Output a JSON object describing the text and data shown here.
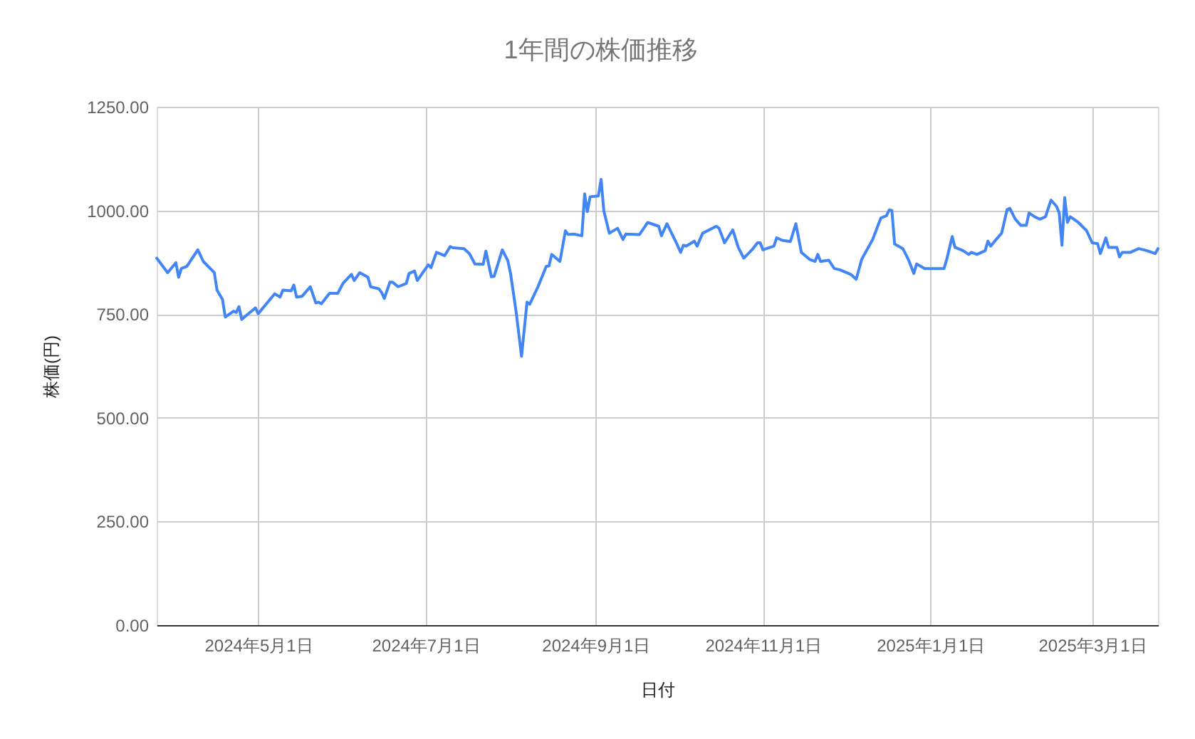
{
  "chart_data": {
    "type": "line",
    "title": "1年間の株価推移",
    "xlabel": "日付",
    "ylabel": "株価(円)",
    "x": [
      "2024-03-25",
      "2024-03-29",
      "2024-04-01",
      "2024-04-02",
      "2024-04-03",
      "2024-04-05",
      "2024-04-09",
      "2024-04-11",
      "2024-04-15",
      "2024-04-16",
      "2024-04-18",
      "2024-04-19",
      "2024-04-22",
      "2024-04-23",
      "2024-04-24",
      "2024-04-25",
      "2024-04-26",
      "2024-04-30",
      "2024-05-01",
      "2024-05-07",
      "2024-05-09",
      "2024-05-10",
      "2024-05-13",
      "2024-05-14",
      "2024-05-15",
      "2024-05-17",
      "2024-05-20",
      "2024-05-22",
      "2024-05-23",
      "2024-05-24",
      "2024-05-27",
      "2024-05-30",
      "2024-06-01",
      "2024-06-04",
      "2024-06-05",
      "2024-06-07",
      "2024-06-10",
      "2024-06-11",
      "2024-06-14",
      "2024-06-15",
      "2024-06-16",
      "2024-06-18",
      "2024-06-19",
      "2024-06-21",
      "2024-06-24",
      "2024-06-25",
      "2024-06-27",
      "2024-06-28",
      "2024-07-02",
      "2024-07-03",
      "2024-07-05",
      "2024-07-08",
      "2024-07-10",
      "2024-07-11",
      "2024-07-15",
      "2024-07-17",
      "2024-07-19",
      "2024-07-22",
      "2024-07-23",
      "2024-07-25",
      "2024-07-26",
      "2024-07-29",
      "2024-07-31",
      "2024-08-01",
      "2024-08-03",
      "2024-08-05",
      "2024-08-07",
      "2024-08-08",
      "2024-08-11",
      "2024-08-14",
      "2024-08-15",
      "2024-08-16",
      "2024-08-19",
      "2024-08-21",
      "2024-08-22",
      "2024-08-24",
      "2024-08-27",
      "2024-08-28",
      "2024-08-29",
      "2024-08-30",
      "2024-09-02",
      "2024-09-03",
      "2024-09-04",
      "2024-09-06",
      "2024-09-09",
      "2024-09-11",
      "2024-09-12",
      "2024-09-17",
      "2024-09-20",
      "2024-09-24",
      "2024-09-25",
      "2024-09-27",
      "2024-09-30",
      "2024-10-02",
      "2024-10-03",
      "2024-10-04",
      "2024-10-07",
      "2024-10-08",
      "2024-10-10",
      "2024-10-15",
      "2024-10-16",
      "2024-10-18",
      "2024-10-21",
      "2024-10-23",
      "2024-10-25",
      "2024-10-28",
      "2024-10-30",
      "2024-10-31",
      "2024-11-01",
      "2024-11-05",
      "2024-11-06",
      "2024-11-08",
      "2024-11-11",
      "2024-11-13",
      "2024-11-15",
      "2024-11-18",
      "2024-11-20",
      "2024-11-21",
      "2024-11-22",
      "2024-11-25",
      "2024-11-27",
      "2024-11-29",
      "2024-12-03",
      "2024-12-05",
      "2024-12-07",
      "2024-12-11",
      "2024-12-14",
      "2024-12-16",
      "2024-12-17",
      "2024-12-18",
      "2024-12-19",
      "2024-12-22",
      "2024-12-24",
      "2024-12-26",
      "2024-12-27",
      "2024-12-30",
      "2025-01-06",
      "2025-01-07",
      "2025-01-09",
      "2025-01-10",
      "2025-01-13",
      "2025-01-15",
      "2025-01-16",
      "2025-01-18",
      "2025-01-21",
      "2025-01-22",
      "2025-01-23",
      "2025-01-25",
      "2025-01-27",
      "2025-01-29",
      "2025-01-30",
      "2025-02-01",
      "2025-02-03",
      "2025-02-05",
      "2025-02-06",
      "2025-02-08",
      "2025-02-10",
      "2025-02-12",
      "2025-02-14",
      "2025-02-16",
      "2025-02-17",
      "2025-02-18",
      "2025-02-19",
      "2025-02-20",
      "2025-02-21",
      "2025-02-24",
      "2025-02-27",
      "2025-03-01",
      "2025-03-03",
      "2025-03-04",
      "2025-03-06",
      "2025-03-07",
      "2025-03-10",
      "2025-03-11",
      "2025-03-12",
      "2025-03-15",
      "2025-03-18",
      "2025-03-21",
      "2025-03-24",
      "2025-03-25"
    ],
    "series": [
      {
        "color": "#4285f4",
        "values": [
          885,
          850,
          874,
          839,
          860,
          865,
          905,
          877,
          850,
          808,
          785,
          743,
          757,
          754,
          768,
          737,
          743,
          765,
          751,
          799,
          791,
          808,
          806,
          820,
          791,
          793,
          816,
          777,
          779,
          775,
          800,
          800,
          825,
          846,
          831,
          850,
          839,
          816,
          811,
          802,
          788,
          827,
          827,
          816,
          824,
          848,
          854,
          831,
          869,
          862,
          899,
          891,
          913,
          910,
          908,
          896,
          871,
          870,
          902,
          840,
          841,
          905,
          879,
          848,
          757,
          648,
          779,
          774,
          816,
          865,
          866,
          894,
          877,
          951,
          942,
          943,
          939,
          1040,
          997,
          1033,
          1035,
          1075,
          999,
          945,
          957,
          930,
          943,
          942,
          971,
          962,
          939,
          968,
          928,
          899,
          916,
          914,
          926,
          914,
          945,
          962,
          957,
          922,
          953,
          911,
          885,
          905,
          922,
          922,
          905,
          914,
          934,
          928,
          925,
          968,
          899,
          882,
          877,
          894,
          877,
          880,
          860,
          857,
          846,
          834,
          882,
          930,
          982,
          987,
          1001,
          1000,
          919,
          908,
          882,
          848,
          871,
          860,
          860,
          882,
          937,
          911,
          903,
          894,
          899,
          894,
          903,
          926,
          914,
          930,
          945,
          1002,
          1005,
          979,
          964,
          964,
          994,
          985,
          979,
          985,
          1025,
          1010,
          994,
          916,
          1031,
          971,
          985,
          971,
          951,
          922,
          920,
          896,
          934,
          911,
          911,
          888,
          899,
          899,
          908,
          903,
          896,
          908
        ]
      }
    ],
    "xlim": [
      "2024-03-25",
      "2025-03-25"
    ],
    "xticks": [
      {
        "value": "2024-05-01",
        "label": "2024年5月1日"
      },
      {
        "value": "2024-07-01",
        "label": "2024年7月1日"
      },
      {
        "value": "2024-09-01",
        "label": "2024年9月1日"
      },
      {
        "value": "2024-11-01",
        "label": "2024年11月1日"
      },
      {
        "value": "2025-01-01",
        "label": "2025年1月1日"
      },
      {
        "value": "2025-03-01",
        "label": "2025年3月1日"
      }
    ],
    "ylim": [
      0,
      1250
    ],
    "yticks": [
      {
        "value": 0,
        "label": "0.00"
      },
      {
        "value": 250,
        "label": "250.00"
      },
      {
        "value": 500,
        "label": "500.00"
      },
      {
        "value": 750,
        "label": "750.00"
      },
      {
        "value": 1000,
        "label": "1000.00"
      },
      {
        "value": 1250,
        "label": "1250.00"
      }
    ],
    "grid": true
  }
}
